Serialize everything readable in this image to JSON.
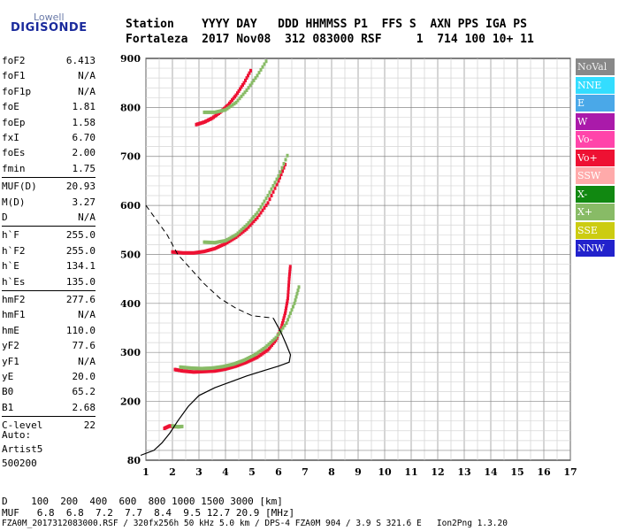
{
  "logo": {
    "top": "Lowell",
    "main": "DIGISONDE"
  },
  "header": {
    "line1": "Station    YYYY DAY   DDD HHMMSS P1  FFS S  AXN PPS IGA PS",
    "line2": "Fortaleza  2017 Nov08  312 083000 RSF     1  714 100 10+ 11"
  },
  "params": [
    {
      "label": "foF2",
      "value": "6.413"
    },
    {
      "label": "foF1",
      "value": "N/A"
    },
    {
      "label": "foF1p",
      "value": "N/A"
    },
    {
      "label": "foE",
      "value": "1.81"
    },
    {
      "label": "foEp",
      "value": "1.58"
    },
    {
      "label": "fxI",
      "value": "6.70"
    },
    {
      "label": "foEs",
      "value": "2.00"
    },
    {
      "label": "fmin",
      "value": "1.75"
    },
    {
      "label": "MUF(D)",
      "value": "20.93"
    },
    {
      "label": "M(D)",
      "value": "3.27"
    },
    {
      "label": "D",
      "value": "N/A"
    },
    {
      "label": "h`F",
      "value": "255.0"
    },
    {
      "label": "h`F2",
      "value": "255.0"
    },
    {
      "label": "h`E",
      "value": "134.1"
    },
    {
      "label": "h`Es",
      "value": "135.0"
    },
    {
      "label": "hmF2",
      "value": "277.6"
    },
    {
      "label": "hmF1",
      "value": "N/A"
    },
    {
      "label": "hmE",
      "value": "110.0"
    },
    {
      "label": "yF2",
      "value": "77.6"
    },
    {
      "label": "yF1",
      "value": "N/A"
    },
    {
      "label": "yE",
      "value": "20.0"
    },
    {
      "label": "B0",
      "value": "65.2"
    },
    {
      "label": "B1",
      "value": "2.68"
    },
    {
      "label": "C-level",
      "value": "22"
    }
  ],
  "auto": {
    "l1": "Auto:",
    "l2": "Artist5",
    "l3": "500200"
  },
  "legend": [
    {
      "label": "NoVal",
      "color": "#888888"
    },
    {
      "label": "NNE",
      "color": "#33ddff"
    },
    {
      "label": "E",
      "color": "#4aa8e8"
    },
    {
      "label": "W",
      "color": "#aa1aaa"
    },
    {
      "label": "Vo-",
      "color": "#ff44aa"
    },
    {
      "label": "Vo+",
      "color": "#ee1133"
    },
    {
      "label": "SSW",
      "color": "#ffaaaa"
    },
    {
      "label": "X-",
      "color": "#118811"
    },
    {
      "label": "X+",
      "color": "#88bb66"
    },
    {
      "label": "SSE",
      "color": "#cccc11"
    },
    {
      "label": "NNW",
      "color": "#2222cc"
    }
  ],
  "bottom": {
    "dline": "D    100  200  400  600  800 1000 1500 3000 [km]",
    "mline": "MUF   6.8  6.8  7.2  7.7  8.4  9.5 12.7 20.9 [MHz]",
    "footer": "FZA0M_2017312083000.RSF / 320fx256h 50 kHz 5.0 km / DPS-4 FZA0M 904 / 3.9 S 321.6 E   Ion2Png 1.3.20"
  },
  "chart_data": {
    "type": "scatter",
    "x_ticks": [
      "1",
      "2",
      "3",
      "4",
      "5",
      "6",
      "7",
      "8",
      "9",
      "10",
      "11",
      "12",
      "13",
      "14",
      "15",
      "16",
      "17"
    ],
    "y_ticks": [
      "80",
      "200",
      "300",
      "400",
      "500",
      "600",
      "700",
      "800",
      "900"
    ],
    "xlim": [
      1,
      17
    ],
    "ylim": [
      80,
      900
    ],
    "grid": true,
    "legend_position": "right",
    "profile_solid": [
      [
        0.8,
        90
      ],
      [
        1.3,
        100
      ],
      [
        1.6,
        115
      ],
      [
        1.9,
        135
      ],
      [
        2.2,
        160
      ],
      [
        2.6,
        190
      ],
      [
        3.0,
        212
      ],
      [
        3.6,
        228
      ],
      [
        4.2,
        240
      ],
      [
        4.8,
        252
      ],
      [
        5.4,
        262
      ],
      [
        6.0,
        272
      ],
      [
        6.4,
        280
      ],
      [
        6.45,
        295
      ],
      [
        6.3,
        315
      ],
      [
        6.1,
        340
      ],
      [
        5.8,
        370
      ]
    ],
    "profile_dashed": [
      [
        1.0,
        600
      ],
      [
        1.4,
        570
      ],
      [
        1.8,
        540
      ],
      [
        2.2,
        500
      ],
      [
        2.7,
        470
      ],
      [
        3.2,
        440
      ],
      [
        3.8,
        410
      ],
      [
        4.4,
        390
      ],
      [
        5.0,
        375
      ],
      [
        5.8,
        370
      ]
    ],
    "traces": [
      {
        "series": "Vo+",
        "points": [
          [
            2.1,
            265
          ],
          [
            2.4,
            262
          ],
          [
            2.8,
            260
          ],
          [
            3.2,
            261
          ],
          [
            3.6,
            262
          ],
          [
            4.0,
            266
          ],
          [
            4.4,
            272
          ],
          [
            4.8,
            280
          ],
          [
            5.2,
            290
          ],
          [
            5.6,
            305
          ],
          [
            5.9,
            325
          ],
          [
            6.1,
            350
          ],
          [
            6.25,
            380
          ],
          [
            6.35,
            410
          ],
          [
            6.4,
            450
          ],
          [
            6.45,
            480
          ]
        ]
      },
      {
        "series": "X+",
        "points": [
          [
            2.3,
            270
          ],
          [
            2.7,
            268
          ],
          [
            3.1,
            267
          ],
          [
            3.5,
            268
          ],
          [
            3.9,
            271
          ],
          [
            4.3,
            276
          ],
          [
            4.7,
            284
          ],
          [
            5.1,
            295
          ],
          [
            5.5,
            310
          ],
          [
            5.9,
            330
          ],
          [
            6.3,
            360
          ],
          [
            6.6,
            400
          ],
          [
            6.8,
            440
          ]
        ]
      },
      {
        "series": "Vo+",
        "points": [
          [
            2.0,
            505
          ],
          [
            2.4,
            503
          ],
          [
            2.8,
            503
          ],
          [
            3.2,
            506
          ],
          [
            3.6,
            512
          ],
          [
            4.0,
            522
          ],
          [
            4.4,
            535
          ],
          [
            4.8,
            552
          ],
          [
            5.2,
            575
          ],
          [
            5.6,
            605
          ],
          [
            6.0,
            650
          ],
          [
            6.3,
            690
          ]
        ]
      },
      {
        "series": "X+",
        "points": [
          [
            3.2,
            525
          ],
          [
            3.6,
            524
          ],
          [
            4.0,
            528
          ],
          [
            4.4,
            540
          ],
          [
            4.8,
            560
          ],
          [
            5.2,
            585
          ],
          [
            5.6,
            620
          ],
          [
            6.0,
            660
          ],
          [
            6.4,
            710
          ]
        ]
      },
      {
        "series": "Vo+",
        "points": [
          [
            2.9,
            765
          ],
          [
            3.2,
            770
          ],
          [
            3.5,
            778
          ],
          [
            3.8,
            790
          ],
          [
            4.1,
            805
          ],
          [
            4.4,
            825
          ],
          [
            4.7,
            850
          ],
          [
            5.0,
            880
          ]
        ]
      },
      {
        "series": "X+",
        "points": [
          [
            3.2,
            790
          ],
          [
            3.6,
            790
          ],
          [
            4.0,
            795
          ],
          [
            4.4,
            810
          ],
          [
            4.8,
            835
          ],
          [
            5.2,
            865
          ],
          [
            5.6,
            900
          ]
        ]
      },
      {
        "series": "Vo+",
        "points": [
          [
            1.7,
            145
          ],
          [
            1.9,
            150
          ],
          [
            2.1,
            148
          ]
        ]
      },
      {
        "series": "X+",
        "points": [
          [
            2.0,
            150
          ],
          [
            2.2,
            148
          ],
          [
            2.4,
            149
          ]
        ]
      }
    ]
  }
}
